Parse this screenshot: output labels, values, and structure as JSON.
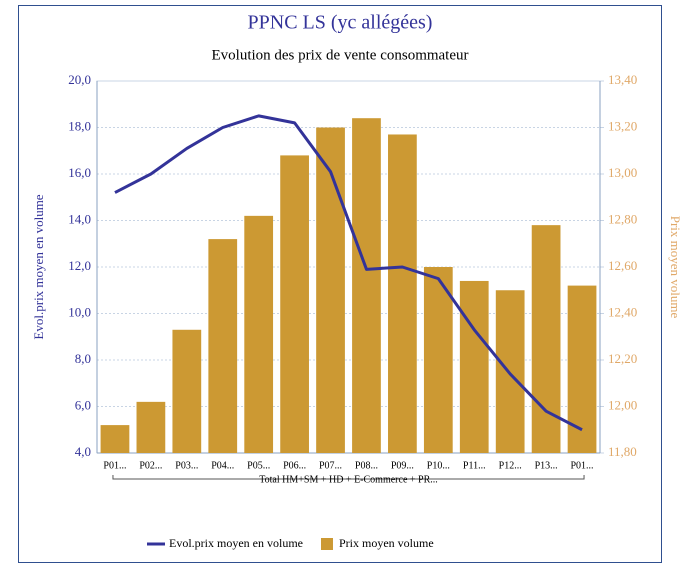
{
  "chart_data": {
    "type": "bar_line",
    "title": "PPNC LS (yc allégées)",
    "subtitle": "Evolution des prix de vente consommateur",
    "ylabel": "Evol.prix moyen en volume",
    "y2label": "Prix moyen volume",
    "group_label": "Total HM+SM + HD + E-Commerce + PR...",
    "categories": [
      "P01...",
      "P02...",
      "P03...",
      "P04...",
      "P05...",
      "P06...",
      "P07...",
      "P08...",
      "P09...",
      "P10...",
      "P11...",
      "P12...",
      "P13...",
      "P01..."
    ],
    "series": [
      {
        "name": "Evol.prix moyen en volume",
        "type": "line",
        "color": "#333399",
        "axis": "y",
        "values": [
          15.2,
          16.0,
          17.1,
          18.0,
          18.5,
          18.2,
          16.1,
          11.9,
          12.0,
          11.5,
          9.3,
          7.4,
          5.8,
          5.0
        ]
      },
      {
        "name": "Prix moyen volume",
        "type": "bar",
        "color": "#cc9933",
        "axis": "y2",
        "values": [
          11.92,
          12.02,
          12.33,
          12.72,
          12.82,
          13.08,
          13.2,
          13.24,
          13.17,
          12.6,
          12.54,
          12.5,
          12.78,
          12.52
        ]
      }
    ],
    "ylim": [
      4,
      20
    ],
    "yticks": [
      {
        "value": 4,
        "label": "4,0"
      },
      {
        "value": 6,
        "label": "6,0"
      },
      {
        "value": 8,
        "label": "8,0"
      },
      {
        "value": 10,
        "label": "10,0"
      },
      {
        "value": 12,
        "label": "12,0"
      },
      {
        "value": 14,
        "label": "14,0"
      },
      {
        "value": 16,
        "label": "16,0"
      },
      {
        "value": 18,
        "label": "18,0"
      },
      {
        "value": 20,
        "label": "20,0"
      }
    ],
    "y2lim": [
      11.8,
      13.4
    ],
    "y2ticks": [
      {
        "value": 11.8,
        "label": "11,80"
      },
      {
        "value": 12,
        "label": "12,00"
      },
      {
        "value": 12.2,
        "label": "12,20"
      },
      {
        "value": 12.4,
        "label": "12,40"
      },
      {
        "value": 12.6,
        "label": "12,60"
      },
      {
        "value": 12.8,
        "label": "12,80"
      },
      {
        "value": 13,
        "label": "13,00"
      },
      {
        "value": 13.2,
        "label": "13,20"
      },
      {
        "value": 13.4,
        "label": "13,40"
      }
    ],
    "grid": true
  }
}
